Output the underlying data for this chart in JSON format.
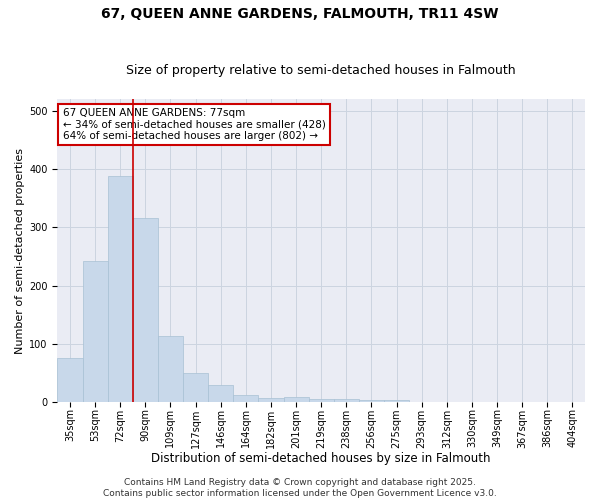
{
  "title_line1": "67, QUEEN ANNE GARDENS, FALMOUTH, TR11 4SW",
  "title_line2": "Size of property relative to semi-detached houses in Falmouth",
  "xlabel": "Distribution of semi-detached houses by size in Falmouth",
  "ylabel": "Number of semi-detached properties",
  "categories": [
    "35sqm",
    "53sqm",
    "72sqm",
    "90sqm",
    "109sqm",
    "127sqm",
    "146sqm",
    "164sqm",
    "182sqm",
    "201sqm",
    "219sqm",
    "238sqm",
    "256sqm",
    "275sqm",
    "293sqm",
    "312sqm",
    "330sqm",
    "349sqm",
    "367sqm",
    "386sqm",
    "404sqm"
  ],
  "values": [
    75,
    242,
    388,
    315,
    113,
    50,
    29,
    13,
    7,
    9,
    6,
    5,
    3,
    4,
    1,
    0,
    1,
    0,
    0,
    0,
    1
  ],
  "bar_color": "#c8d8ea",
  "bar_edge_color": "#a8c0d4",
  "grid_color": "#ccd4e0",
  "background_color": "#eaecf4",
  "ref_line_color": "#cc0000",
  "annotation_text": "67 QUEEN ANNE GARDENS: 77sqm\n← 34% of semi-detached houses are smaller (428)\n64% of semi-detached houses are larger (802) →",
  "annotation_box_edgecolor": "#cc0000",
  "footer_text": "Contains HM Land Registry data © Crown copyright and database right 2025.\nContains public sector information licensed under the Open Government Licence v3.0.",
  "ylim": [
    0,
    520
  ],
  "title_fontsize": 10,
  "subtitle_fontsize": 9,
  "xlabel_fontsize": 8.5,
  "ylabel_fontsize": 8,
  "tick_fontsize": 7,
  "annot_fontsize": 7.5,
  "footer_fontsize": 6.5
}
